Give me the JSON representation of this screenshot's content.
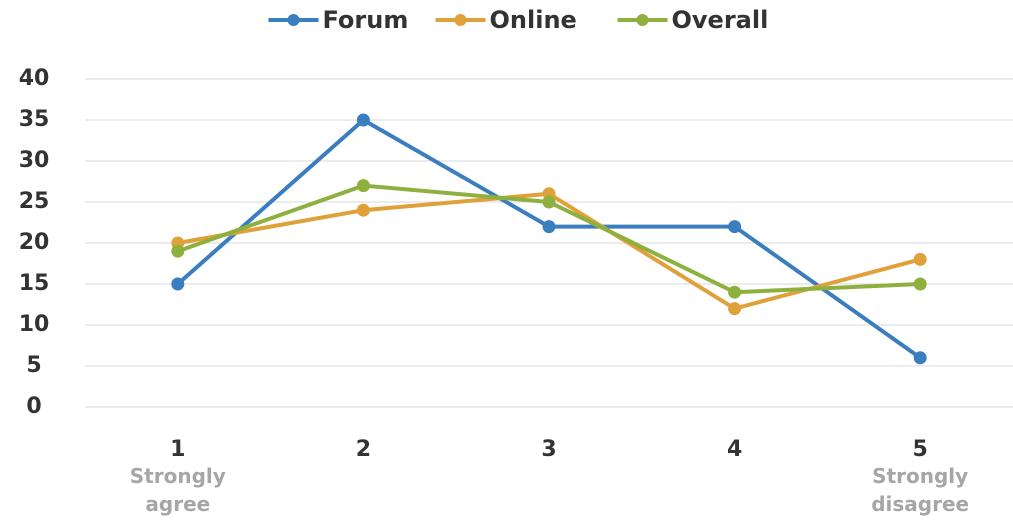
{
  "chart_data": {
    "type": "line",
    "categories": [
      "1",
      "2",
      "3",
      "4",
      "5"
    ],
    "series": [
      {
        "name": "Forum",
        "color": "#3a7ebf",
        "values": [
          15,
          35,
          22,
          22,
          6
        ]
      },
      {
        "name": "Online",
        "color": "#e0a03a",
        "values": [
          20,
          24,
          26,
          12,
          18
        ]
      },
      {
        "name": "Overall",
        "color": "#8db03e",
        "values": [
          19,
          27,
          25,
          14,
          15
        ]
      }
    ],
    "annotations": [
      "Strongly agree",
      "Strongly disagree"
    ],
    "ylim": [
      0,
      40
    ],
    "yticks": [
      0,
      5,
      10,
      15,
      20,
      25,
      30,
      35,
      40
    ],
    "grid": true,
    "legend": "top"
  }
}
